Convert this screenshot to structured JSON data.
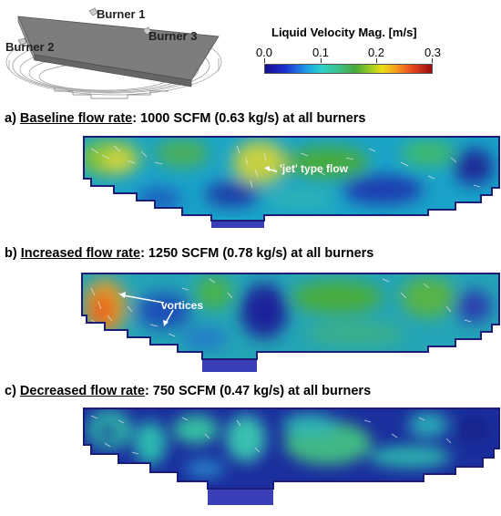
{
  "schematic": {
    "burners": [
      "Burner 1",
      "Burner 2",
      "Burner 3"
    ]
  },
  "colorbar": {
    "title": "Liquid Velocity Mag. [m/s]",
    "ticks": [
      "0.0",
      "0.1",
      "0.2",
      "0.3"
    ],
    "stops": [
      "#140e8c",
      "#1b2fd2",
      "#1ea6e6",
      "#3cc08a",
      "#47a93d",
      "#e8e012",
      "#f6a01e",
      "#e84a1e",
      "#9a0a10"
    ]
  },
  "panels": [
    {
      "prefix": "a) ",
      "title": "Baseline flow rate",
      "rest": ": 1000 SCFM (0.63 kg/s) at all burners",
      "annotations": [
        "'jet' type flow"
      ]
    },
    {
      "prefix": "b) ",
      "title": "Increased flow rate",
      "rest": ": 1250 SCFM (0.78 kg/s) at all burners",
      "annotations": [
        "vortices"
      ]
    },
    {
      "prefix": "c) ",
      "title": "Decreased flow rate",
      "rest": ": 750 SCFM (0.47 kg/s) at all burners",
      "annotations": []
    }
  ]
}
